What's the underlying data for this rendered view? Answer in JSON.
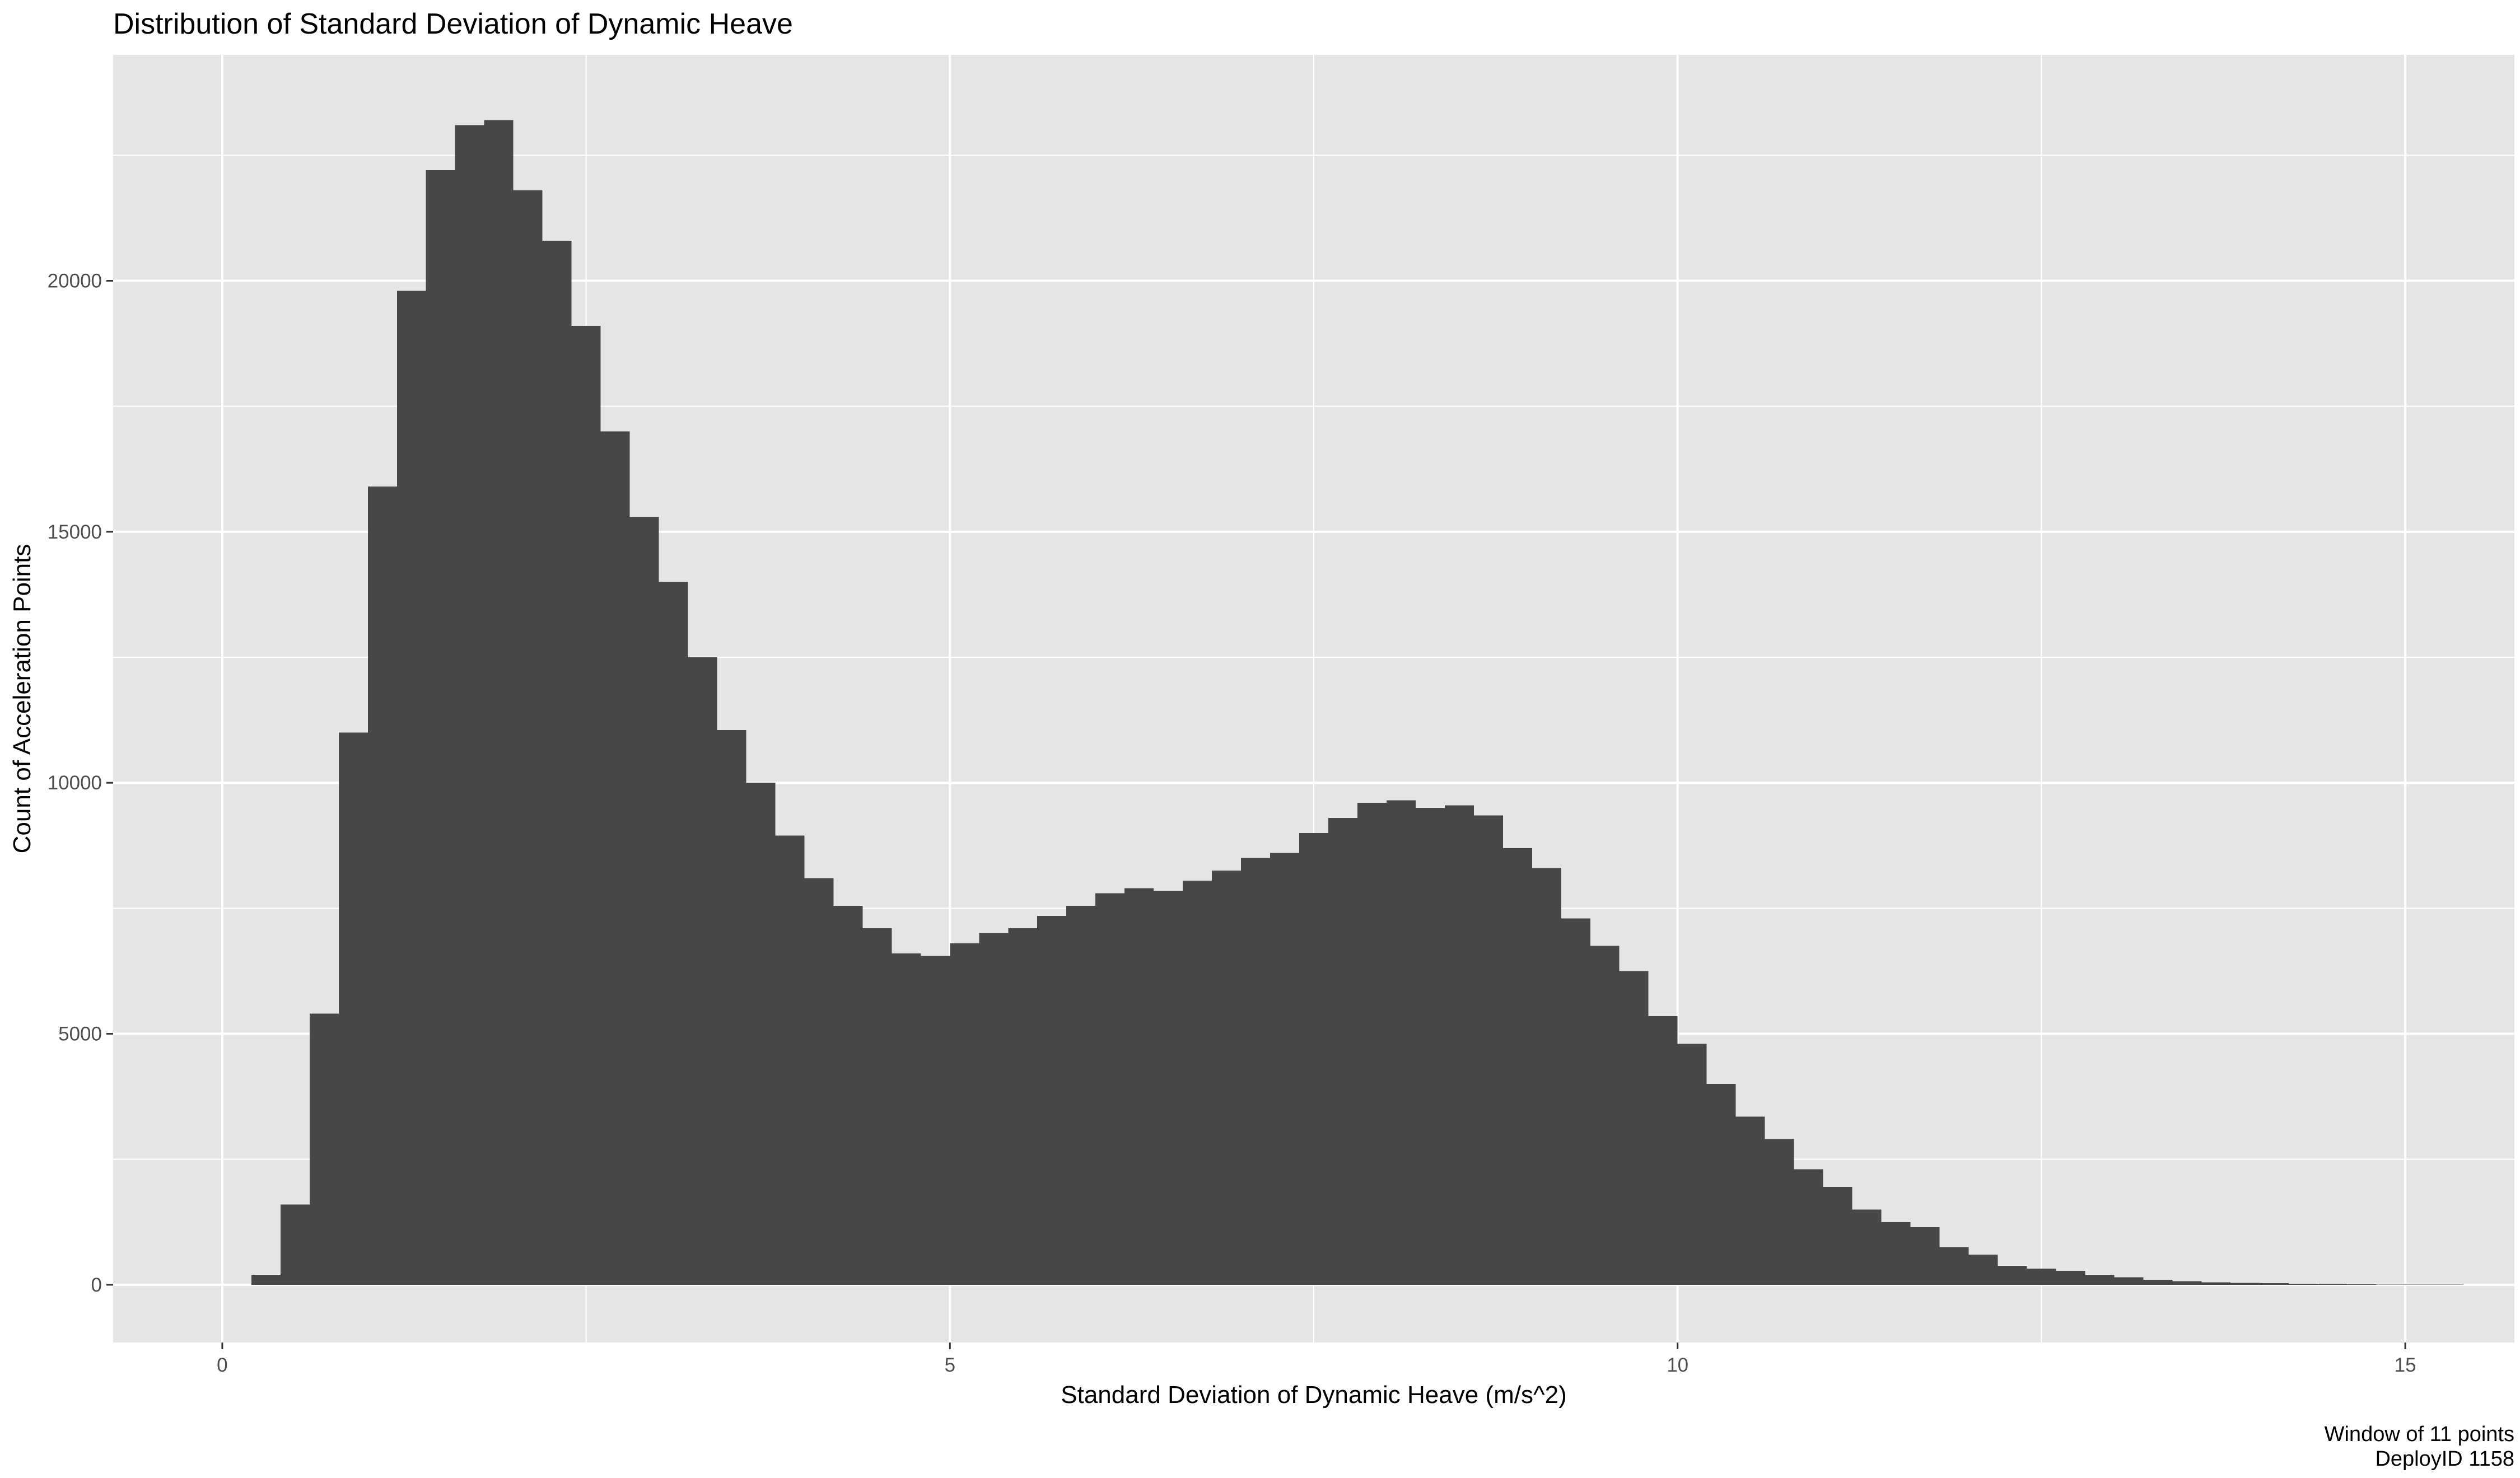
{
  "chart_data": {
    "type": "bar",
    "title": "Distribution of Standard Deviation of Dynamic Heave",
    "xlabel": "Standard Deviation of Dynamic Heave (m/s^2)",
    "ylabel": "Count of Acceleration Points",
    "caption_lines": [
      "Window of 11 points",
      "DeployID 1158"
    ],
    "xlim": [
      -0.75,
      15.75
    ],
    "ylim": [
      -1150,
      24500
    ],
    "x_ticks": [
      0,
      5,
      10,
      15
    ],
    "x_tick_labels": [
      "0",
      "5",
      "10",
      "15"
    ],
    "y_ticks": [
      0,
      5000,
      10000,
      15000,
      20000
    ],
    "y_tick_labels": [
      "0",
      "5000",
      "10000",
      "15000",
      "20000"
    ],
    "x_minor_ticks": [
      2.5,
      7.5,
      12.5
    ],
    "y_minor_ticks": [
      2500,
      7500,
      12500,
      17500,
      22500
    ],
    "grid": true,
    "bin_width": 0.2,
    "bin_start": 0.2,
    "bar_color": "#474747",
    "panel_color": "#e5e5e5",
    "grid_color": "#ffffff",
    "values": [
      200,
      1600,
      5400,
      11000,
      15900,
      19800,
      22200,
      23100,
      23200,
      21800,
      20800,
      19100,
      17000,
      15300,
      14000,
      12500,
      11050,
      10000,
      8950,
      8100,
      7550,
      7100,
      6600,
      6550,
      6800,
      7000,
      7100,
      7350,
      7550,
      7800,
      7900,
      7850,
      8050,
      8250,
      8500,
      8600,
      9000,
      9300,
      9600,
      9650,
      9500,
      9550,
      9350,
      8700,
      8300,
      7300,
      6750,
      6250,
      5350,
      4800,
      4000,
      3350,
      2900,
      2300,
      1950,
      1500,
      1250,
      1150,
      750,
      600,
      380,
      320,
      280,
      200,
      150,
      100,
      70,
      50,
      40,
      30,
      20,
      15,
      10,
      5,
      5,
      3
    ]
  }
}
